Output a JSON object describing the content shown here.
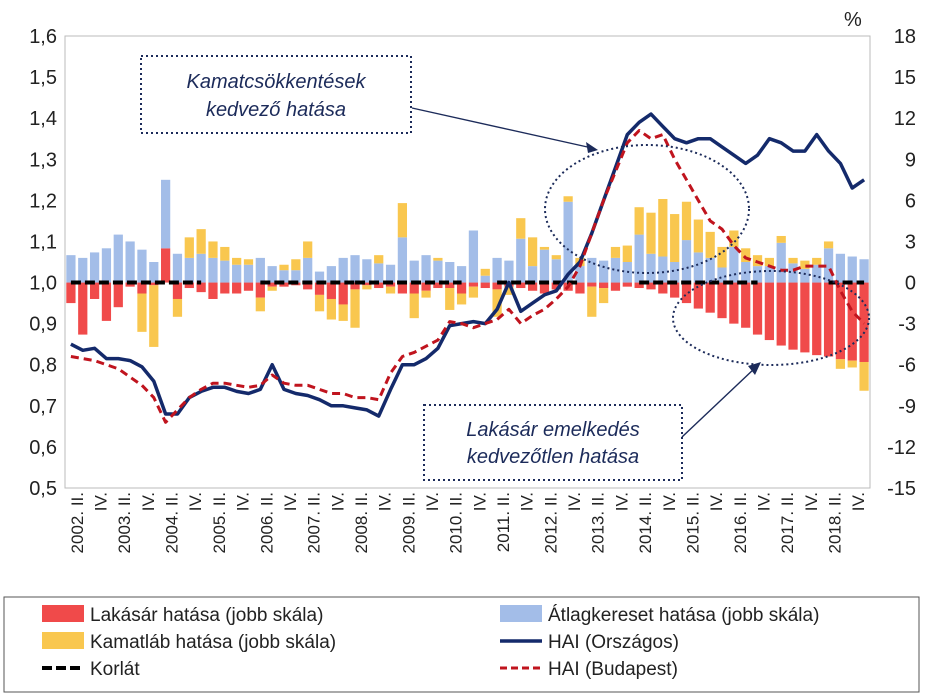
{
  "chart_data": {
    "type": "bar",
    "unit_right": "%",
    "left_axis": {
      "ticks": [
        "0,5",
        "0,6",
        "0,7",
        "0,8",
        "0,9",
        "1,0",
        "1,1",
        "1,2",
        "1,3",
        "1,4",
        "1,5",
        "1,6"
      ],
      "range": [
        0.5,
        1.6
      ]
    },
    "right_axis": {
      "ticks": [
        "-15",
        "-12",
        "-9",
        "-6",
        "-3",
        "0",
        "3",
        "6",
        "9",
        "12",
        "15",
        "18"
      ],
      "range": [
        -15,
        18
      ]
    },
    "x_labels": [
      "2002. II.",
      "IV.",
      "2003. II.",
      "IV.",
      "2004. II.",
      "IV.",
      "2005. II.",
      "IV.",
      "2006. II.",
      "IV.",
      "2007. II.",
      "IV.",
      "2008. II.",
      "IV.",
      "2009. II.",
      "IV.",
      "2010. II.",
      "IV.",
      "2011. II.",
      "IV.",
      "2012. II.",
      "IV.",
      "2013. II.",
      "IV.",
      "2014. II.",
      "IV.",
      "2015. II.",
      "IV.",
      "2016. II.",
      "IV.",
      "2017. II.",
      "IV.",
      "2018. II.",
      "IV."
    ],
    "quarter_count": 68,
    "series": [
      {
        "name": "Lakásár hatása (jobb skála)",
        "type": "bar",
        "axis": "right",
        "color": "#f04a4a",
        "values": [
          -1.5,
          -3.8,
          -1.2,
          -2.8,
          -1.8,
          -0.3,
          -0.8,
          -0.2,
          2.5,
          -1.2,
          -0.4,
          -0.7,
          -1.2,
          -0.8,
          -0.8,
          -0.6,
          -1.1,
          -0.3,
          -0.3,
          -0.2,
          -0.5,
          -0.9,
          -1.2,
          -1.6,
          -0.5,
          -0.2,
          -0.4,
          -0.3,
          -0.8,
          -0.8,
          -0.6,
          -0.4,
          -0.4,
          -0.8,
          -0.3,
          -0.4,
          -0.5,
          -0.3,
          -0.4,
          -0.6,
          -0.8,
          -0.5,
          -0.6,
          -0.8,
          -0.3,
          -0.4,
          -0.6,
          -0.3,
          -0.4,
          -0.5,
          -0.8,
          -1.1,
          -1.5,
          -1.9,
          -2.2,
          -2.6,
          -3.0,
          -3.3,
          -3.8,
          -4.2,
          -4.6,
          -4.9,
          -5.1,
          -5.3,
          -5.4,
          -5.6,
          -5.7,
          -5.8
        ]
      },
      {
        "name": "Átlagkereset hatása (jobb skála)",
        "type": "bar",
        "axis": "right",
        "color": "#a3bde8",
        "values": [
          2.0,
          1.8,
          2.2,
          2.5,
          3.5,
          3.0,
          2.4,
          1.5,
          5.0,
          2.1,
          1.8,
          2.1,
          1.8,
          1.6,
          1.3,
          1.3,
          1.8,
          1.2,
          0.9,
          0.9,
          1.8,
          0.8,
          1.2,
          1.8,
          2.0,
          1.7,
          1.4,
          1.3,
          3.3,
          1.6,
          2.0,
          1.6,
          1.5,
          1.2,
          3.8,
          0.5,
          1.8,
          1.6,
          3.2,
          1.2,
          2.4,
          1.7,
          5.9,
          1.2,
          1.8,
          1.6,
          1.8,
          1.5,
          3.5,
          2.1,
          1.9,
          1.5,
          3.1,
          2.2,
          1.8,
          1.1,
          2.6,
          1.5,
          1.2,
          1.2,
          2.9,
          1.4,
          1.0,
          1.3,
          2.5,
          2.1,
          1.9,
          1.7
        ]
      },
      {
        "name": "Kamatláb hatása (jobb skála)",
        "type": "bar",
        "axis": "right",
        "color": "#f9c74f",
        "values": [
          0.0,
          0.0,
          0.0,
          0.0,
          0.0,
          0.0,
          -2.8,
          -4.5,
          0.0,
          -1.3,
          1.5,
          1.8,
          1.2,
          1.0,
          0.5,
          0.4,
          -1.0,
          -0.3,
          0.4,
          0.8,
          1.2,
          -1.2,
          -1.5,
          -1.2,
          -2.8,
          -0.3,
          0.6,
          -0.5,
          2.5,
          -1.8,
          -0.5,
          0.2,
          -1.6,
          -0.8,
          -0.8,
          0.5,
          -2.0,
          -0.6,
          1.5,
          2.1,
          0.2,
          0.3,
          0.4,
          0.6,
          -2.2,
          -1.1,
          0.8,
          1.2,
          2.0,
          3.0,
          4.2,
          3.5,
          2.8,
          2.4,
          1.9,
          1.5,
          1.2,
          1.0,
          0.8,
          0.6,
          0.5,
          0.4,
          0.6,
          0.5,
          0.5,
          -0.7,
          -0.5,
          -2.1
        ]
      },
      {
        "name": "HAI (Országos)",
        "type": "line",
        "axis": "left",
        "color": "#142a6b",
        "values": [
          0.85,
          0.835,
          0.84,
          0.815,
          0.815,
          0.81,
          0.795,
          0.76,
          0.68,
          0.68,
          0.72,
          0.735,
          0.745,
          0.745,
          0.735,
          0.73,
          0.74,
          0.8,
          0.74,
          0.73,
          0.725,
          0.715,
          0.7,
          0.7,
          0.695,
          0.69,
          0.675,
          0.74,
          0.8,
          0.8,
          0.815,
          0.84,
          0.895,
          0.9,
          0.905,
          0.9,
          0.935,
          1.0,
          0.93,
          0.95,
          0.97,
          0.98,
          1.02,
          1.05,
          1.12,
          1.2,
          1.28,
          1.36,
          1.39,
          1.41,
          1.38,
          1.35,
          1.34,
          1.35,
          1.35,
          1.33,
          1.31,
          1.29,
          1.31,
          1.35,
          1.34,
          1.32,
          1.32,
          1.36,
          1.32,
          1.29,
          1.23,
          1.25
        ]
      },
      {
        "name": "HAI (Budapest)",
        "type": "line",
        "axis": "left",
        "color": "#c0141e",
        "values": [
          0.82,
          0.815,
          0.81,
          0.8,
          0.79,
          0.77,
          0.75,
          0.72,
          0.66,
          0.69,
          0.72,
          0.74,
          0.755,
          0.755,
          0.75,
          0.745,
          0.75,
          0.775,
          0.755,
          0.75,
          0.75,
          0.74,
          0.73,
          0.73,
          0.72,
          0.72,
          0.715,
          0.78,
          0.82,
          0.83,
          0.845,
          0.86,
          0.905,
          0.9,
          0.89,
          0.9,
          0.91,
          0.935,
          0.9,
          0.92,
          0.935,
          0.96,
          0.99,
          1.04,
          1.12,
          1.2,
          1.27,
          1.34,
          1.37,
          1.35,
          1.36,
          1.3,
          1.25,
          1.2,
          1.15,
          1.13,
          1.09,
          1.06,
          1.05,
          1.04,
          1.03,
          1.03,
          1.04,
          1.04,
          1.04,
          0.98,
          0.93,
          0.9
        ]
      },
      {
        "name": "Korlát",
        "type": "line",
        "axis": "left",
        "color": "#000000",
        "segments": [
          [
            0,
            11
          ],
          [
            16,
            24
          ],
          [
            24,
            33
          ],
          [
            36,
            43
          ],
          [
            48,
            58
          ],
          [
            64,
            67
          ]
        ],
        "value": 1.0
      }
    ],
    "annotations": [
      {
        "lines": [
          "Kamatcsökkentések",
          "kedvező hatása"
        ]
      },
      {
        "lines": [
          "Lakásár emelkedés",
          "kedvezőtlen hatása"
        ]
      }
    ]
  },
  "legend": {
    "items": [
      {
        "label": "Lakásár hatása (jobb skála)",
        "kind": "box",
        "color": "#f04a4a"
      },
      {
        "label": "Átlagkereset hatása (jobb skála)",
        "kind": "box",
        "color": "#a3bde8"
      },
      {
        "label": "Kamatláb hatása (jobb skála)",
        "kind": "box",
        "color": "#f9c74f"
      },
      {
        "label": "HAI (Országos)",
        "kind": "line",
        "color": "#142a6b"
      },
      {
        "label": "Korlát",
        "kind": "dashline",
        "color": "#000000"
      },
      {
        "label": "HAI (Budapest)",
        "kind": "dashline-red",
        "color": "#c0141e"
      }
    ]
  }
}
